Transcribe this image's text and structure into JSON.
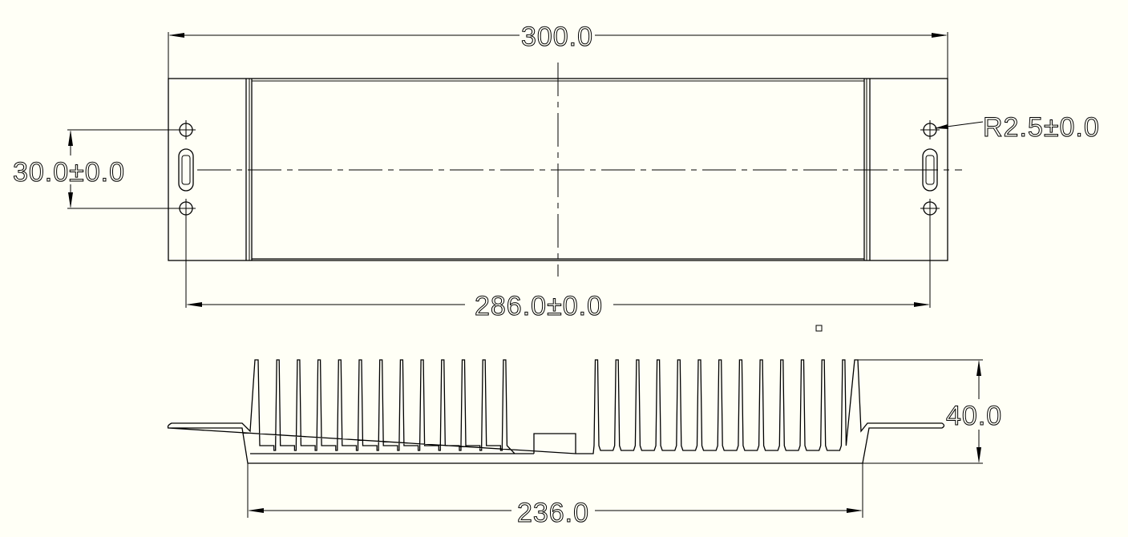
{
  "background": "#fffff6",
  "line_color": "#000000",
  "dimensions": {
    "overall_length": "300.0",
    "hole_spacing_long": "286.0±0.0",
    "hole_spacing_short": "30.0±0.0",
    "hole_radius": "R2.5±0.0",
    "base_width": "236.0",
    "height": "40.0"
  }
}
